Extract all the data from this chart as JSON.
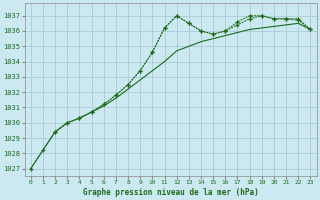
{
  "title": "Graphe pression niveau de la mer (hPa)",
  "bg_color": "#cce8f0",
  "grid_color": "#aaccd8",
  "line_color": "#1a6b1a",
  "xlim": [
    -0.5,
    23.5
  ],
  "ylim": [
    1026.5,
    1037.8
  ],
  "xticks": [
    0,
    1,
    2,
    3,
    4,
    5,
    6,
    7,
    8,
    9,
    10,
    11,
    12,
    13,
    14,
    15,
    16,
    17,
    18,
    19,
    20,
    21,
    22,
    23
  ],
  "yticks": [
    1027,
    1028,
    1029,
    1030,
    1031,
    1032,
    1033,
    1034,
    1035,
    1036,
    1037
  ],
  "series1_x": [
    0,
    1,
    2,
    3,
    4,
    5,
    6,
    7,
    8,
    9,
    10,
    11,
    12,
    13,
    14,
    15,
    16,
    17,
    18,
    19,
    20,
    21,
    22,
    23
  ],
  "series1_y": [
    1027.0,
    1028.2,
    1029.4,
    1030.0,
    1030.3,
    1030.7,
    1031.1,
    1031.6,
    1032.2,
    1032.8,
    1033.4,
    1034.0,
    1034.7,
    1035.0,
    1035.3,
    1035.5,
    1035.7,
    1035.9,
    1036.1,
    1036.2,
    1036.3,
    1036.4,
    1036.5,
    1036.1
  ],
  "series2_x": [
    0,
    1,
    2,
    3,
    4,
    5,
    6,
    7,
    8,
    9,
    10,
    11,
    12,
    13,
    14,
    15,
    16,
    17,
    18,
    19,
    20,
    21,
    22,
    23
  ],
  "series2_y": [
    1027.0,
    1028.2,
    1029.4,
    1030.0,
    1030.3,
    1030.7,
    1031.2,
    1031.8,
    1032.5,
    1033.4,
    1034.6,
    1036.2,
    1037.0,
    1036.5,
    1036.0,
    1035.8,
    1036.0,
    1036.4,
    1036.8,
    1037.0,
    1036.8,
    1036.8,
    1036.8,
    1036.1
  ],
  "series3_x": [
    2,
    3,
    4,
    5,
    6,
    7,
    8,
    9,
    10,
    11,
    12,
    13,
    14,
    15,
    16,
    17,
    18,
    19,
    20,
    21,
    22,
    23
  ],
  "series3_y": [
    1029.4,
    1030.0,
    1030.3,
    1030.7,
    1031.2,
    1031.8,
    1032.5,
    1033.4,
    1034.6,
    1036.2,
    1037.0,
    1036.5,
    1036.0,
    1035.8,
    1036.0,
    1036.6,
    1037.0,
    1037.0,
    1036.8,
    1036.8,
    1036.7,
    1036.1
  ]
}
